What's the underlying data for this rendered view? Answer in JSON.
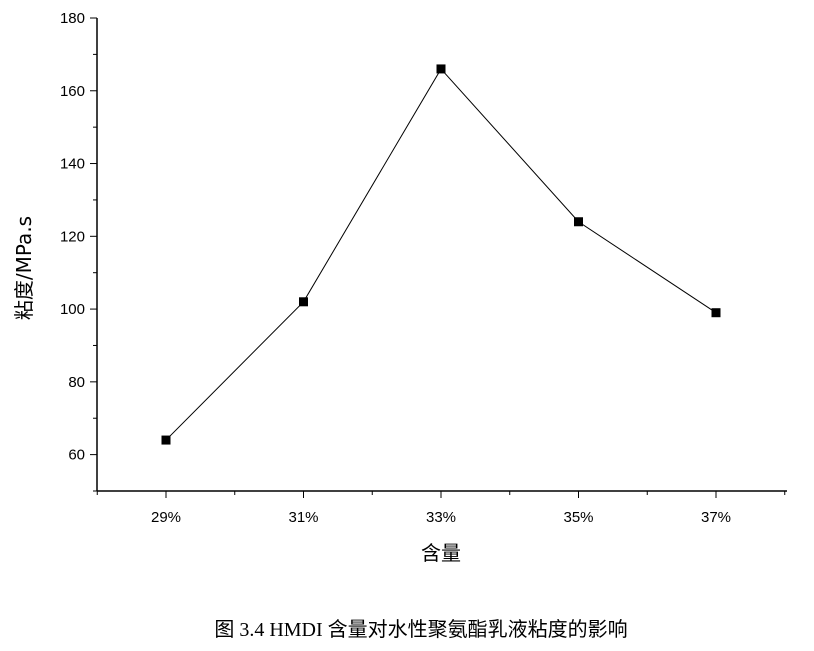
{
  "chart_data": {
    "type": "line",
    "caption": "图 3.4 HMDI 含量对水性聚氨酯乳液粘度的影响",
    "xlabel": "含量",
    "ylabel": "粘度/MPa.s",
    "categories": [
      "29%",
      "31%",
      "33%",
      "35%",
      "37%"
    ],
    "series": [
      {
        "values": [
          64,
          102,
          166,
          124,
          99
        ]
      }
    ],
    "ylim": [
      50,
      180
    ],
    "yticks": [
      60,
      80,
      100,
      120,
      140,
      160,
      180
    ],
    "marker": "square",
    "line_color": "#000000",
    "grid": false,
    "legend": "none"
  }
}
